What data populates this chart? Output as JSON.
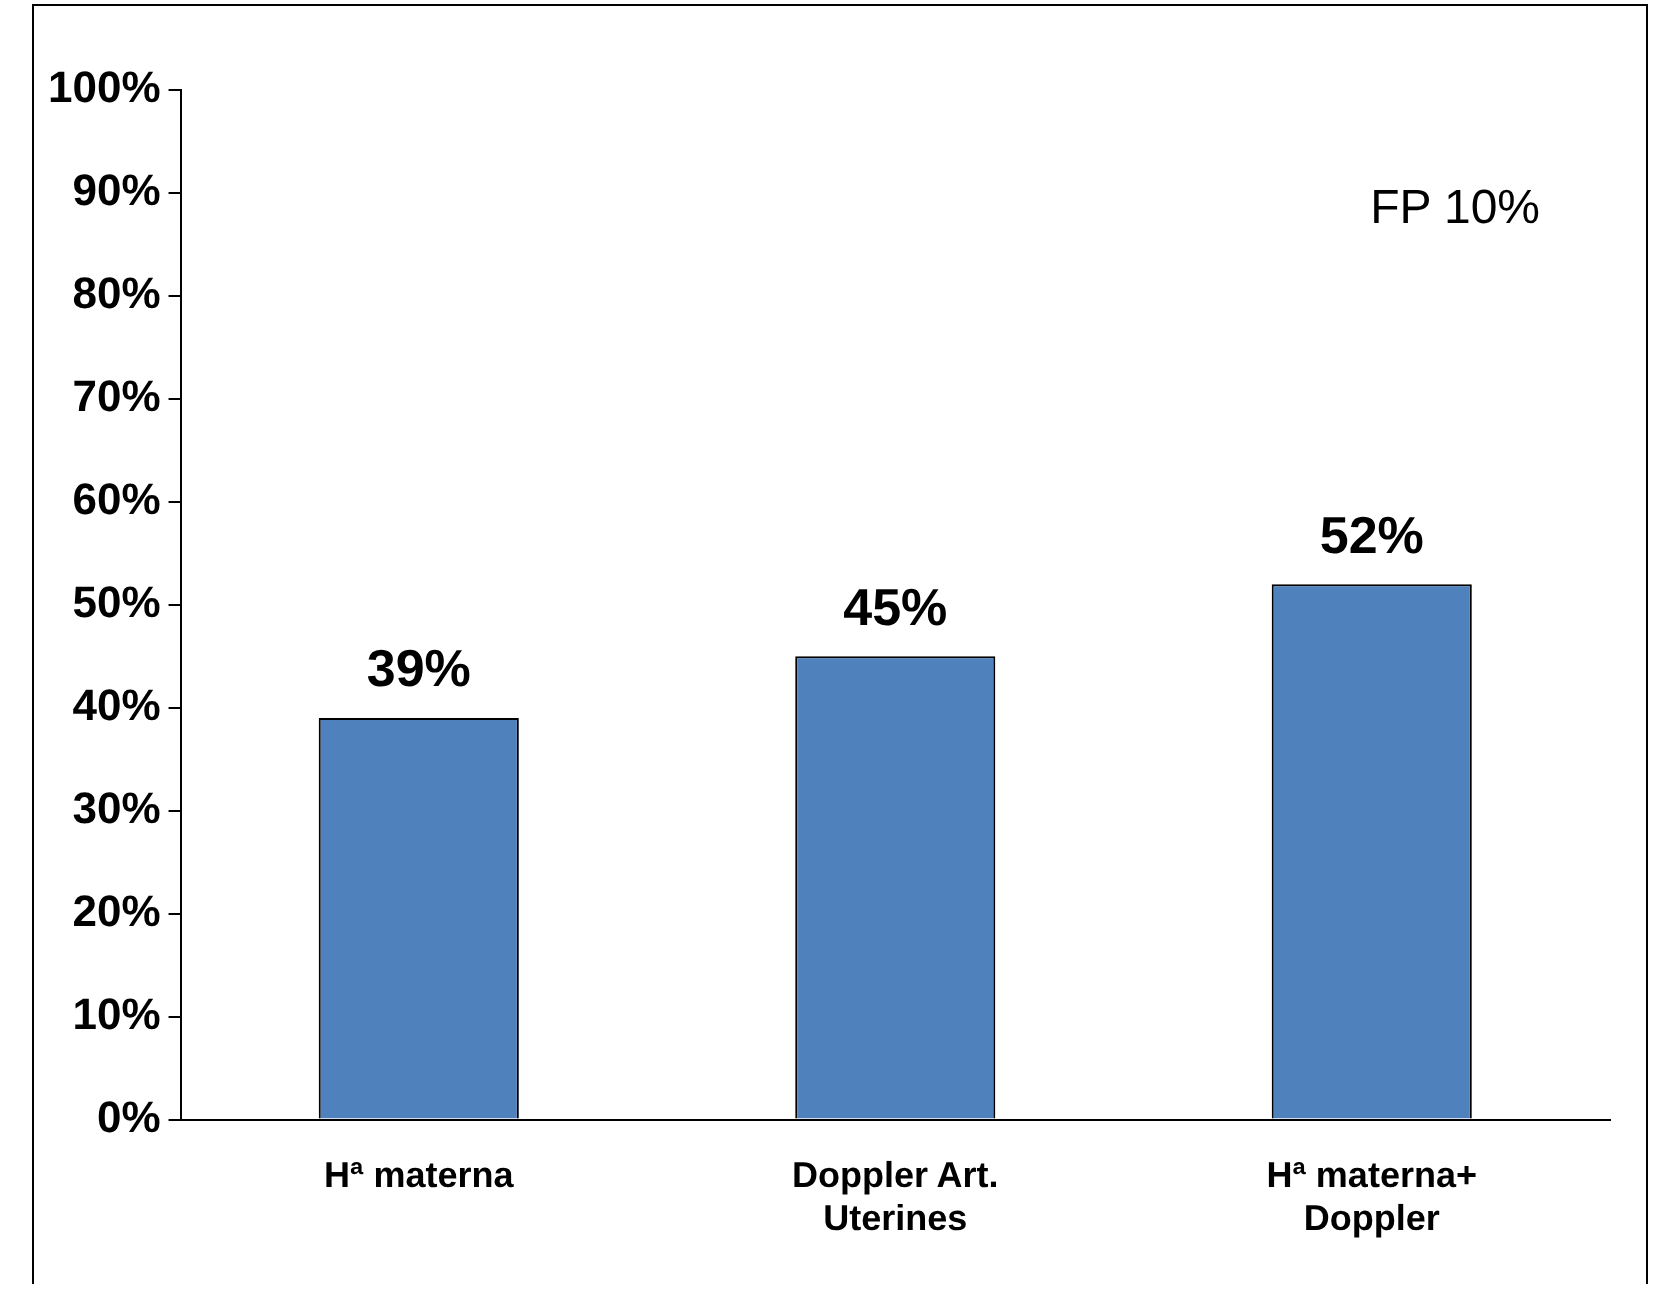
{
  "chart_data": {
    "type": "bar",
    "categories": [
      "Hª materna",
      "Doppler Art. Uterines",
      "Hª materna+ Doppler"
    ],
    "values": [
      39,
      45,
      52
    ],
    "color": "#4f81bd",
    "value_labels": [
      "39%",
      "45%",
      "52%"
    ],
    "ylim": [
      0,
      100
    ],
    "yticks": [
      {
        "value": 0,
        "label": "0%"
      },
      {
        "value": 10,
        "label": "10%"
      },
      {
        "value": 20,
        "label": "20%"
      },
      {
        "value": 30,
        "label": "30%"
      },
      {
        "value": 40,
        "label": "40%"
      },
      {
        "value": 50,
        "label": "50%"
      },
      {
        "value": 60,
        "label": "60%"
      },
      {
        "value": 70,
        "label": "70%"
      },
      {
        "value": 80,
        "label": "80%"
      },
      {
        "value": 90,
        "label": "90%"
      },
      {
        "value": 100,
        "label": "100%"
      }
    ],
    "annotations": [
      "FP 10%"
    ],
    "grid": false,
    "legend": false
  }
}
